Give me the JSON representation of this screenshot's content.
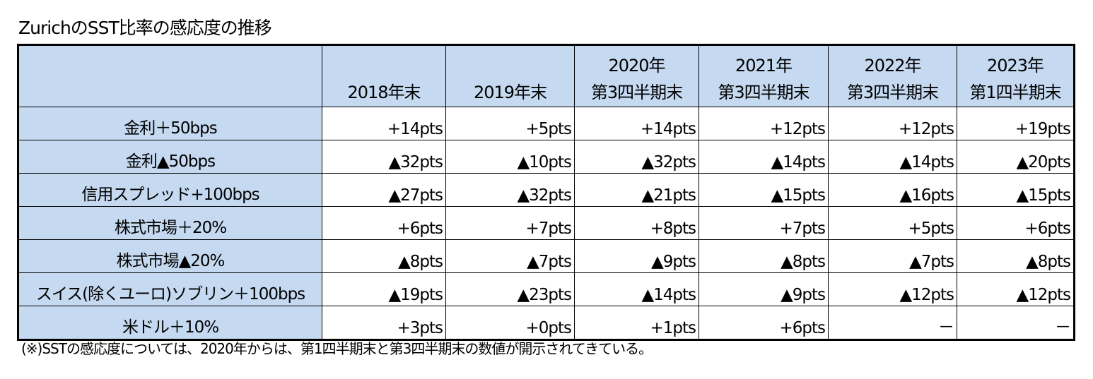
{
  "title": "ZurichのSST比率の感応度の推移",
  "table": {
    "corner": "",
    "columns": [
      {
        "line1": "",
        "line2": "2018年末"
      },
      {
        "line1": "",
        "line2": "2019年末"
      },
      {
        "line1": "2020年",
        "line2": "第3四半期末"
      },
      {
        "line1": "2021年",
        "line2": "第3四半期末"
      },
      {
        "line1": "2022年",
        "line2": "第3四半期末"
      },
      {
        "line1": "2023年",
        "line2": "第1四半期末"
      }
    ],
    "rows": [
      {
        "label": "金利＋50bps",
        "values": [
          "+14pts",
          "+5pts",
          "+14pts",
          "+12pts",
          "+12pts",
          "+19pts"
        ]
      },
      {
        "label": "金利▲50bps",
        "values": [
          "▲32pts",
          "▲10pts",
          "▲32pts",
          "▲14pts",
          "▲14pts",
          "▲20pts"
        ]
      },
      {
        "label": "信用スプレッド+100bps",
        "values": [
          "▲27pts",
          "▲32pts",
          "▲21pts",
          "▲15pts",
          "▲16pts",
          "▲15pts"
        ]
      },
      {
        "label": "株式市場＋20%",
        "values": [
          "+6pts",
          "+7pts",
          "+8pts",
          "+7pts",
          "+5pts",
          "+6pts"
        ]
      },
      {
        "label": "株式市場▲20%",
        "values": [
          "▲8pts",
          "▲7pts",
          "▲9pts",
          "▲8pts",
          "▲7pts",
          "▲8pts"
        ]
      },
      {
        "label": "スイス(除くユーロ)ソブリン＋100bps",
        "values": [
          "▲19pts",
          "▲23pts",
          "▲14pts",
          "▲9pts",
          "▲12pts",
          "▲12pts"
        ]
      },
      {
        "label": "米ドル＋10%",
        "values": [
          "+3pts",
          "+0pts",
          "+1pts",
          "+6pts",
          "－",
          "－"
        ]
      }
    ]
  },
  "footnote": "(※)SSTの感応度については、2020年からは、第1四半期末と第3四半期末の数値が開示されてきている。",
  "colors": {
    "header_fill": "#c5d9f1",
    "border": "#000000"
  }
}
